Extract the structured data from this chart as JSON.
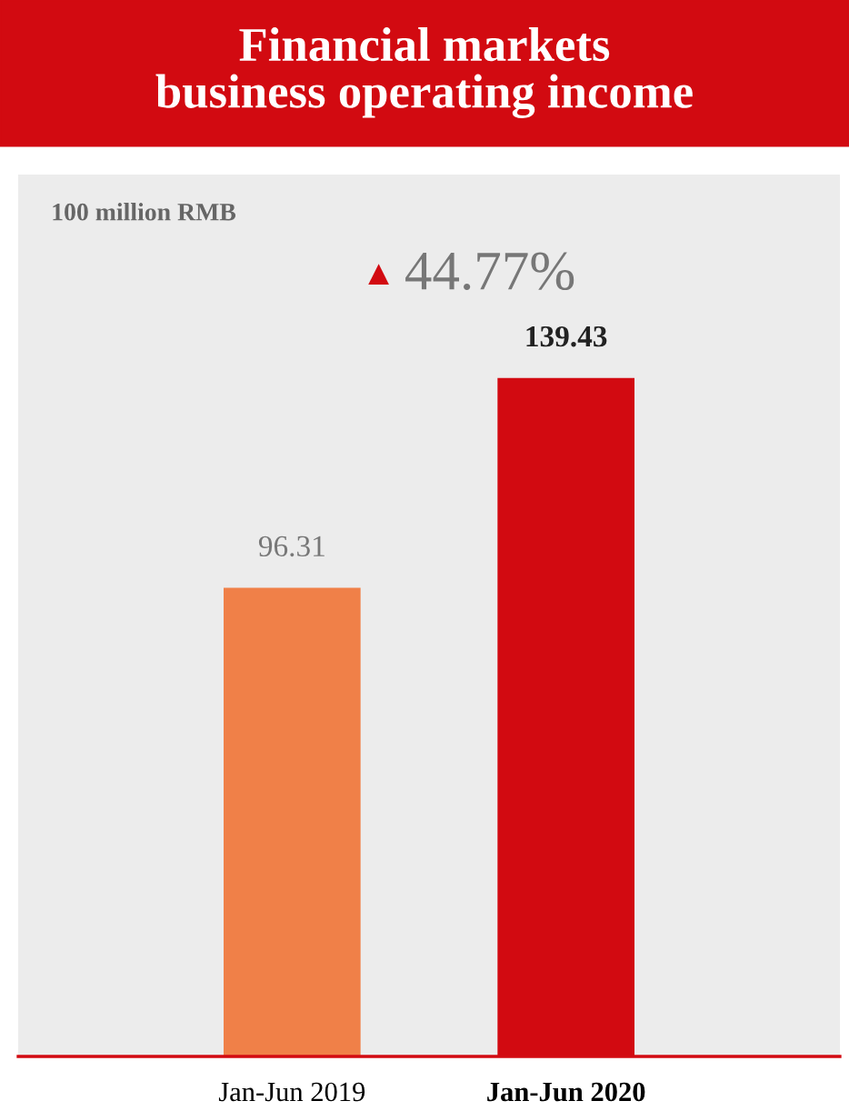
{
  "chart_data": {
    "type": "bar",
    "title": "Financial markets\nbusiness operating income",
    "annotations": [
      "100 million RMB",
      "▲ 44.77%"
    ],
    "categories": [
      "Jan-Jun 2019",
      "Jan-Jun 2020"
    ],
    "values": [
      96.31,
      139.43
    ],
    "colors": [
      "#f08048",
      "#d20a11"
    ],
    "data_labels": true,
    "grid": false,
    "legend": false
  }
}
